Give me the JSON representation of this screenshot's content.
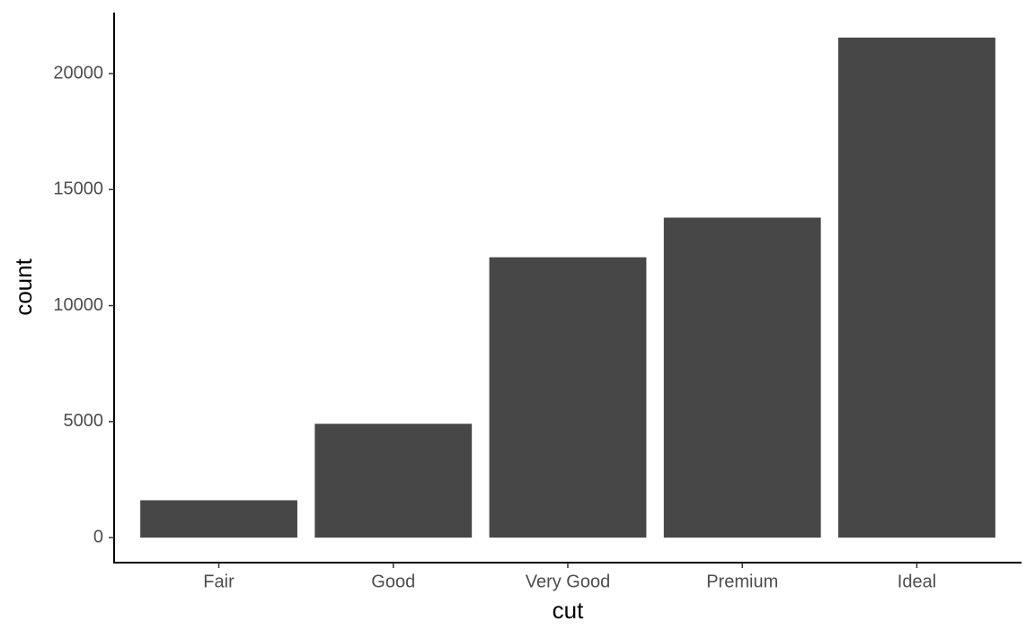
{
  "chart_data": {
    "type": "bar",
    "x_label": "cut",
    "y_label": "count",
    "categories": [
      "Fair",
      "Good",
      "Very Good",
      "Premium",
      "Ideal"
    ],
    "values": [
      1610,
      4906,
      12082,
      13791,
      21551
    ],
    "color": "#474747",
    "ylim": [
      -1077.55,
      22628.55
    ],
    "yticks": [
      0,
      5000,
      10000,
      15000,
      20000
    ],
    "grid": false
  }
}
